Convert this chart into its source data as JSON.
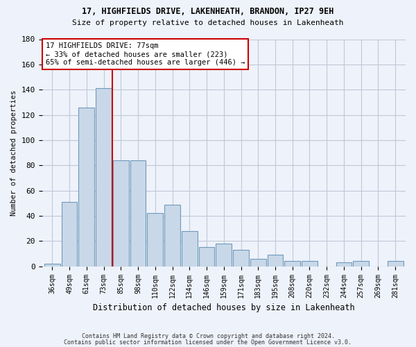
{
  "title1": "17, HIGHFIELDS DRIVE, LAKENHEATH, BRANDON, IP27 9EH",
  "title2": "Size of property relative to detached houses in Lakenheath",
  "xlabel": "Distribution of detached houses by size in Lakenheath",
  "ylabel": "Number of detached properties",
  "categories": [
    "36sqm",
    "49sqm",
    "61sqm",
    "73sqm",
    "85sqm",
    "98sqm",
    "110sqm",
    "122sqm",
    "134sqm",
    "146sqm",
    "159sqm",
    "171sqm",
    "183sqm",
    "195sqm",
    "208sqm",
    "220sqm",
    "232sqm",
    "244sqm",
    "257sqm",
    "269sqm",
    "281sqm"
  ],
  "values": [
    2,
    51,
    126,
    141,
    84,
    84,
    42,
    49,
    28,
    15,
    18,
    13,
    6,
    9,
    4,
    4,
    0,
    3,
    4,
    0,
    4
  ],
  "bar_color": "#c8d8e8",
  "bar_edge_color": "#7099bb",
  "grid_color": "#c0c8d8",
  "background_color": "#eef2fa",
  "vline_x_index": 3,
  "vline_color": "#cc0000",
  "annotation_line1": "17 HIGHFIELDS DRIVE: 77sqm",
  "annotation_line2": "← 33% of detached houses are smaller (223)",
  "annotation_line3": "65% of semi-detached houses are larger (446) →",
  "annotation_box_color": "#ffffff",
  "annotation_box_edge": "#cc0000",
  "ylim": [
    0,
    180
  ],
  "yticks": [
    0,
    20,
    40,
    60,
    80,
    100,
    120,
    140,
    160,
    180
  ],
  "footer1": "Contains HM Land Registry data © Crown copyright and database right 2024.",
  "footer2": "Contains public sector information licensed under the Open Government Licence v3.0."
}
